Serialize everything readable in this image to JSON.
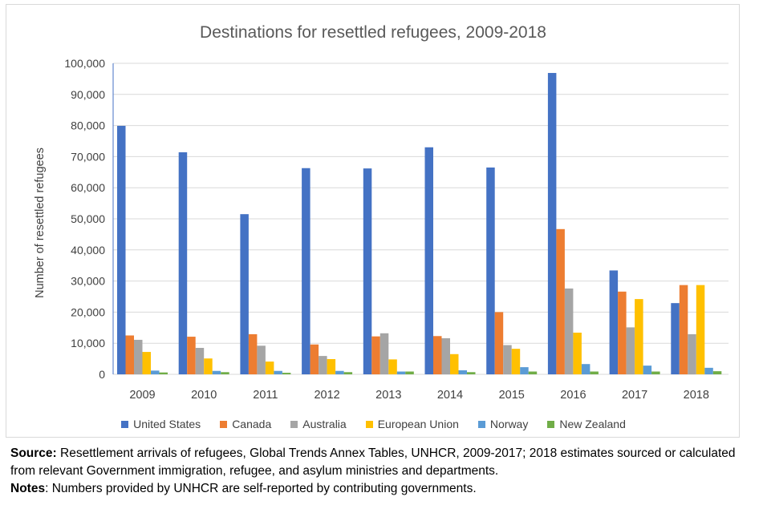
{
  "chart_data": {
    "type": "bar",
    "title": "Destinations for resettled refugees, 2009-2018",
    "ylabel": "Number of resettled refugees",
    "xlabel": "",
    "ylim": [
      0,
      100000
    ],
    "yticks": [
      0,
      10000,
      20000,
      30000,
      40000,
      50000,
      60000,
      70000,
      80000,
      90000,
      100000
    ],
    "ytick_labels": [
      "0",
      "10,000",
      "20,000",
      "30,000",
      "40,000",
      "50,000",
      "60,000",
      "70,000",
      "80,000",
      "90,000",
      "100,000"
    ],
    "categories": [
      "2009",
      "2010",
      "2011",
      "2012",
      "2013",
      "2014",
      "2015",
      "2016",
      "2017",
      "2018"
    ],
    "grid": true,
    "legend_position": "bottom",
    "series": [
      {
        "name": "United States",
        "color": "#4472c4",
        "values": [
          79900,
          71400,
          51500,
          66300,
          66200,
          73000,
          66500,
          96900,
          33400,
          22900
        ]
      },
      {
        "name": "Canada",
        "color": "#ed7d31",
        "values": [
          12500,
          12100,
          12900,
          9600,
          12200,
          12300,
          20000,
          46700,
          26600,
          28700
        ]
      },
      {
        "name": "Australia",
        "color": "#a5a5a5",
        "values": [
          11100,
          8500,
          9200,
          5900,
          13200,
          11600,
          9400,
          27600,
          15100,
          12900
        ]
      },
      {
        "name": "European Union",
        "color": "#ffc000",
        "values": [
          7200,
          5100,
          4100,
          4900,
          4800,
          6500,
          8200,
          13400,
          24200,
          28700
        ]
      },
      {
        "name": "Norway",
        "color": "#5b9bd5",
        "values": [
          1200,
          1100,
          1100,
          1100,
          900,
          1300,
          2300,
          3300,
          2800,
          2100
        ]
      },
      {
        "name": "New Zealand",
        "color": "#70ad47",
        "values": [
          600,
          700,
          500,
          700,
          900,
          700,
          900,
          900,
          900,
          1000
        ]
      }
    ]
  },
  "notes": {
    "source_label": "Source:",
    "source_text": " Resettlement arrivals of refugees, Global Trends Annex Tables, UNHCR, 2009-2017; 2018 estimates sourced or calculated from relevant Government immigration, refugee, and asylum ministries and departments.",
    "notes_label": "Notes",
    "notes_text": ": Numbers provided by UNHCR are self-reported by contributing governments."
  }
}
